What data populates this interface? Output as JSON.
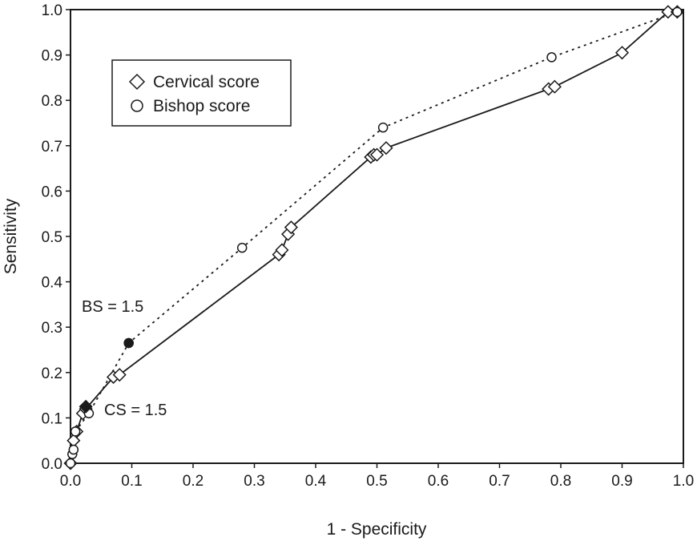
{
  "chart_data": {
    "type": "line",
    "title": "",
    "xlabel": "1 - Specificity",
    "ylabel": "Sensitivity",
    "xlim": [
      0,
      1
    ],
    "ylim": [
      0,
      1
    ],
    "xticks": [
      "0.0",
      "0.1",
      "0.2",
      "0.3",
      "0.4",
      "0.5",
      "0.6",
      "0.7",
      "0.8",
      "0.9",
      "1.0"
    ],
    "yticks": [
      "0.0",
      "0.1",
      "0.2",
      "0.3",
      "0.4",
      "0.5",
      "0.6",
      "0.7",
      "0.8",
      "0.9",
      "1.0"
    ],
    "grid": false,
    "legend": "top-left",
    "series": [
      {
        "name": "Cervical score",
        "marker": "diamond",
        "line": "solid",
        "color": "#1a1a1a",
        "x": [
          0.0,
          0.005,
          0.01,
          0.02,
          0.025,
          0.07,
          0.08,
          0.34,
          0.345,
          0.355,
          0.36,
          0.49,
          0.495,
          0.5,
          0.515,
          0.78,
          0.79,
          0.9,
          0.975,
          0.99
        ],
        "y": [
          0.0,
          0.05,
          0.07,
          0.11,
          0.12,
          0.19,
          0.195,
          0.46,
          0.47,
          0.505,
          0.52,
          0.675,
          0.68,
          0.68,
          0.695,
          0.825,
          0.83,
          0.905,
          0.995,
          0.995
        ]
      },
      {
        "name": "Bishop score",
        "marker": "circle",
        "line": "dotted",
        "color": "#1a1a1a",
        "x": [
          0.0,
          0.003,
          0.005,
          0.008,
          0.03,
          0.095,
          0.28,
          0.51,
          0.785,
          0.99
        ],
        "y": [
          0.0,
          0.02,
          0.03,
          0.07,
          0.11,
          0.265,
          0.475,
          0.74,
          0.895,
          0.995
        ]
      }
    ],
    "highlights": [
      {
        "series": "Cervical score",
        "x": 0.025,
        "y": 0.125,
        "marker": "filled-diamond"
      },
      {
        "series": "Bishop score",
        "x": 0.095,
        "y": 0.265,
        "marker": "filled-circle"
      }
    ],
    "annotations": [
      {
        "text": "BS = 1.5",
        "x": 0.015,
        "y": 0.34
      },
      {
        "text": "CS = 1.5",
        "x": 0.055,
        "y": 0.115
      }
    ]
  }
}
